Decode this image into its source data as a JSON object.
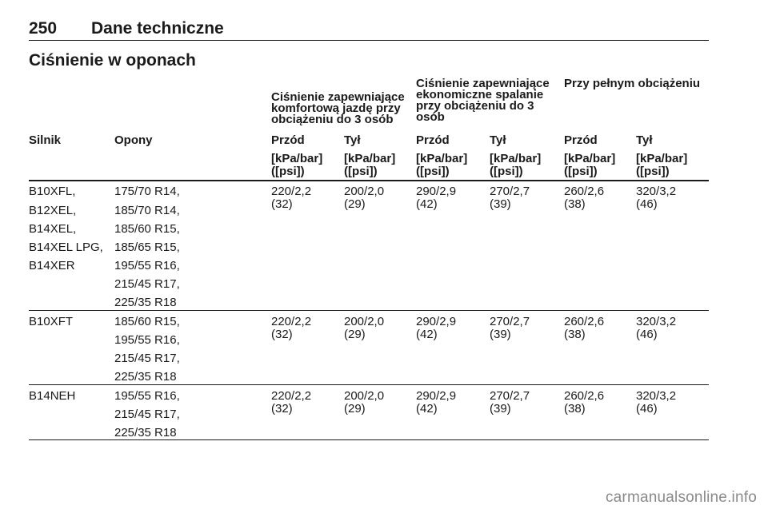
{
  "header": {
    "page_number": "250",
    "chapter": "Dane techniczne"
  },
  "section_title": "Ciśnienie w oponach",
  "table": {
    "group_headers": [
      "Ciśnienie zapewniające komfortową jazdę przy obciążeniu do 3 osób",
      "Ciśnienie zapewniające ekonomiczne spalanie przy obciążeniu do 3 osób",
      "Przy pełnym obciążeniu"
    ],
    "columns": [
      "Silnik",
      "Opony",
      "Przód",
      "Tył",
      "Przód",
      "Tył",
      "Przód",
      "Tył"
    ],
    "units": [
      "[kPa/bar] ([psi])",
      "[kPa/bar] ([psi])",
      "[kPa/bar] ([psi])",
      "[kPa/bar] ([psi])",
      "[kPa/bar] ([psi])",
      "[kPa/bar] ([psi])"
    ],
    "rows": [
      {
        "engines": [
          "B10XFL,",
          "B12XEL,",
          "B14XEL,",
          "B14XEL LPG,",
          "B14XER"
        ],
        "tyres": [
          "175/70 R14,",
          "185/70 R14,",
          "185/60 R15,",
          "185/65 R15,",
          "195/55 R16,",
          "215/45 R17,",
          "225/35 R18"
        ],
        "pressures": [
          "220/2,2 (32)",
          "200/2,0 (29)",
          "290/2,9 (42)",
          "270/2,7 (39)",
          "260/2,6 (38)",
          "320/3,2 (46)"
        ]
      },
      {
        "engines": [
          "B10XFT"
        ],
        "tyres": [
          "185/60 R15,",
          "195/55 R16,",
          "215/45 R17,",
          "225/35 R18"
        ],
        "pressures": [
          "220/2,2 (32)",
          "200/2,0 (29)",
          "290/2,9 (42)",
          "270/2,7 (39)",
          "260/2,6 (38)",
          "320/3,2 (46)"
        ]
      },
      {
        "engines": [
          "B14NEH"
        ],
        "tyres": [
          "195/55 R16,",
          "215/45 R17,",
          "225/35 R18"
        ],
        "pressures": [
          "220/2,2 (32)",
          "200/2,0 (29)",
          "290/2,9 (42)",
          "270/2,7 (39)",
          "260/2,6 (38)",
          "320/3,2 (46)"
        ]
      }
    ]
  },
  "watermark": "carmanualsonline.info"
}
